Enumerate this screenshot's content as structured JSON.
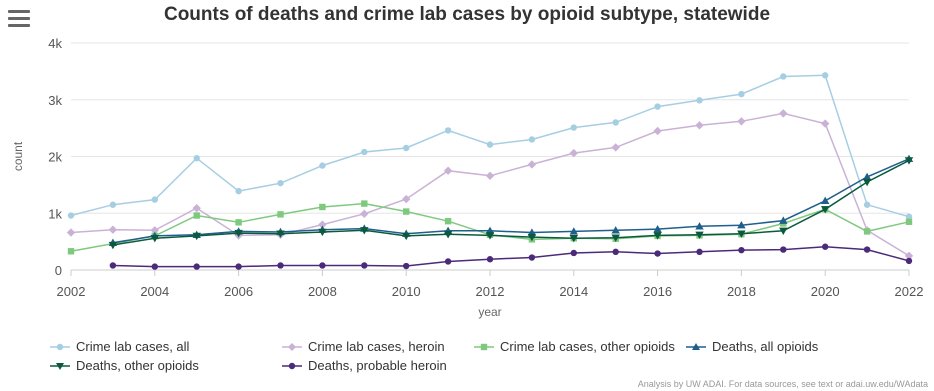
{
  "title": "Counts of deaths and crime lab cases by opioid subtype, statewide",
  "credits": "Analysis by UW ADAI. For data sources, see text or adai.uw.edu/WAdata",
  "chart_data": {
    "type": "line",
    "title": "Counts of deaths and crime lab cases by opioid subtype, statewide",
    "xlabel": "year",
    "ylabel": "count",
    "xlim": [
      2002,
      2022
    ],
    "ylim": [
      0,
      4000
    ],
    "x_ticks": [
      "2002",
      "2004",
      "2006",
      "2008",
      "2010",
      "2012",
      "2014",
      "2016",
      "2018",
      "2020",
      "2022"
    ],
    "y_ticks": [
      "0",
      "1k",
      "2k",
      "3k",
      "4k"
    ],
    "grid": "horizontal",
    "legend": "bottom",
    "x": [
      2002,
      2003,
      2004,
      2005,
      2006,
      2007,
      2008,
      2009,
      2010,
      2011,
      2012,
      2013,
      2014,
      2015,
      2016,
      2017,
      2018,
      2019,
      2020,
      2021,
      2022
    ],
    "series": [
      {
        "name": "Crime lab cases, all",
        "color": "#a6cee3",
        "marker": "circle",
        "values": [
          960,
          1150,
          1240,
          1970,
          1390,
          1530,
          1840,
          2080,
          2150,
          2460,
          2210,
          2300,
          2510,
          2600,
          2880,
          2990,
          3100,
          3410,
          3430,
          1150,
          940
        ]
      },
      {
        "name": "Crime lab cases, heroin",
        "color": "#cab2d6",
        "marker": "diamond",
        "values": [
          660,
          710,
          700,
          1090,
          610,
          620,
          800,
          990,
          1250,
          1750,
          1660,
          1860,
          2060,
          2160,
          2450,
          2550,
          2620,
          2760,
          2580,
          700,
          250
        ]
      },
      {
        "name": "Crime lab cases, other opioids",
        "color": "#7fc97f",
        "marker": "square",
        "values": [
          330,
          null,
          600,
          960,
          840,
          980,
          1110,
          1170,
          1030,
          860,
          620,
          540,
          560,
          550,
          600,
          610,
          630,
          820,
          1070,
          680,
          850
        ]
      },
      {
        "name": "Deaths, all opioids",
        "color": "#1f5f8b",
        "marker": "triangle",
        "values": [
          null,
          480,
          600,
          620,
          680,
          670,
          710,
          730,
          640,
          690,
          690,
          660,
          680,
          700,
          720,
          770,
          790,
          870,
          1220,
          1640,
          1960
        ]
      },
      {
        "name": "Deaths, other opioids",
        "color": "#0b5a3e",
        "marker": "triangle-down",
        "values": [
          null,
          440,
          560,
          600,
          650,
          640,
          670,
          700,
          600,
          630,
          610,
          580,
          560,
          570,
          610,
          620,
          640,
          690,
          1070,
          1550,
          1930
        ]
      },
      {
        "name": "Deaths, probable heroin",
        "color": "#4b2a7a",
        "marker": "circle",
        "values": [
          null,
          80,
          60,
          60,
          60,
          80,
          80,
          80,
          70,
          150,
          190,
          220,
          300,
          320,
          290,
          320,
          350,
          360,
          410,
          360,
          160
        ]
      }
    ]
  }
}
